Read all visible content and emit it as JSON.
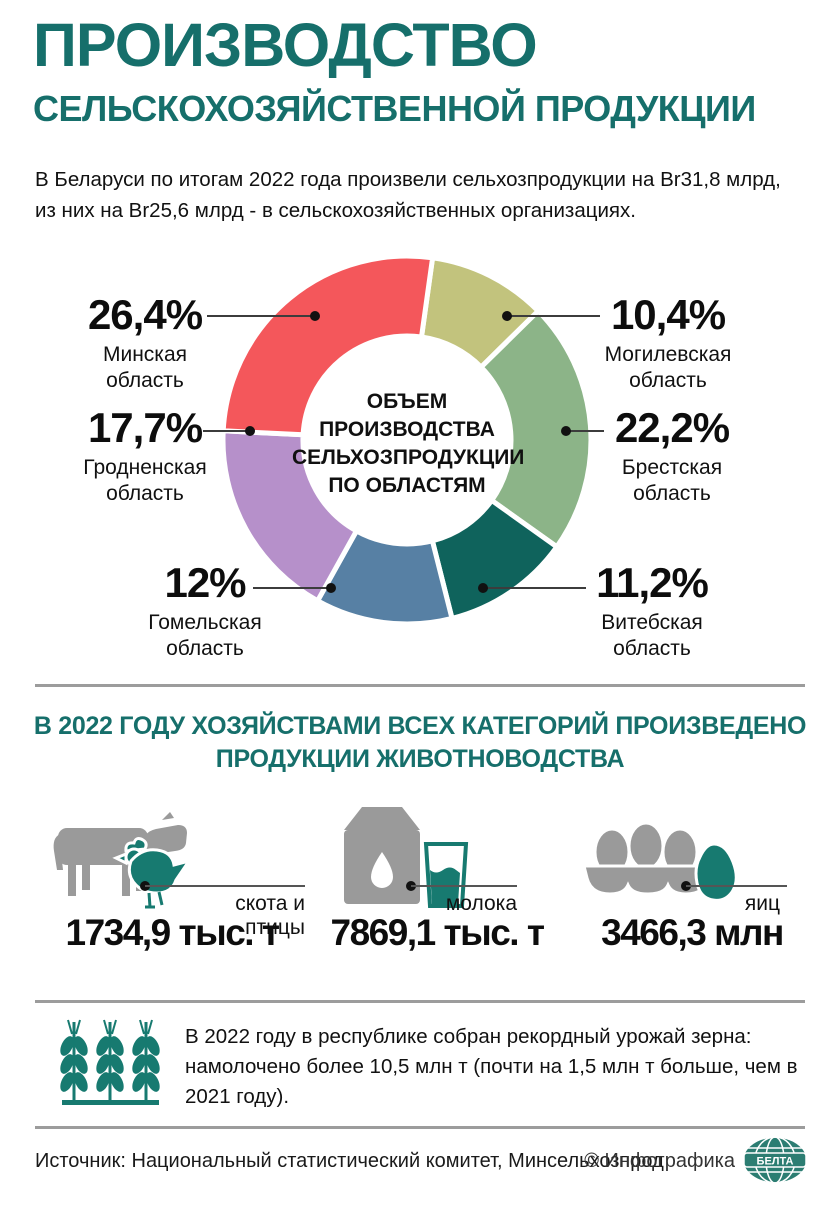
{
  "title": {
    "line1": "ПРОИЗВОДСТВО",
    "line2": "СЕЛЬСКОХОЗЯЙСТВЕННОЙ ПРОДУКЦИИ"
  },
  "intro": "В Беларуси по итогам 2022 года произвели сельхозпродукции на Br31,8 млрд, из них на Br25,6 млрд - в сельскохозяйственных организациях.",
  "chart_data": {
    "type": "pie",
    "subtype": "donut",
    "title": "ОБЪЕМ ПРОИЗВОДСТВА СЕЛЬХОЗПРОДУКЦИИ ПО ОБЛАСТЯМ",
    "center_label_lines": [
      "ОБЪЕМ",
      "ПРОИЗВОДСТВА",
      "СЕЛЬХОЗПРОДУКЦИИ",
      "ПО ОБЛАСТЯМ"
    ],
    "units": "%",
    "start_angle_deg": 8,
    "legend_position": "callouts-around-donut",
    "segments": [
      {
        "label": "Могилевская область",
        "value": 10.4,
        "value_text": "10,4%",
        "color": "#c2c37d"
      },
      {
        "label": "Брестская область",
        "value": 22.2,
        "value_text": "22,2%",
        "color": "#8cb488"
      },
      {
        "label": "Витебская область",
        "value": 11.2,
        "value_text": "11,2%",
        "color": "#0f635c"
      },
      {
        "label": "Гомельская область",
        "value": 12.0,
        "value_text": "12%",
        "color": "#5780a4"
      },
      {
        "label": "Гродненская область",
        "value": 17.7,
        "value_text": "17,7%",
        "color": "#b690ca"
      },
      {
        "label": "Минская область",
        "value": 26.4,
        "value_text": "26,4%",
        "color": "#f4575b"
      }
    ]
  },
  "livestock": {
    "heading_line1": "В 2022 ГОДУ ХОЗЯЙСТВАМИ ВСЕХ КАТЕГОРИЙ ПРОИЗВЕДЕНО",
    "heading_line2": "ПРОДУКЦИИ ЖИВОТНОВОДСТВА",
    "items": [
      {
        "icon": "cow-and-chicken-icon",
        "label": "скота и птицы",
        "value": "1734,9 тыс. т"
      },
      {
        "icon": "milk-icon",
        "label": "молока",
        "value": "7869,1 тыс. т"
      },
      {
        "icon": "eggs-icon",
        "label": "яиц",
        "value": "3466,3 млн"
      }
    ]
  },
  "grain_note": "В 2022 году в республике собран рекордный урожай зерна: намолочено более 10,5 млн т (почти на 1,5 млн т больше, чем в 2021 году).",
  "footer": {
    "source": "Источник: Национальный статистический комитет, Минсельхозпрод",
    "credit": "© Инфографика",
    "logo": "БЕЛТА"
  },
  "colors": {
    "accent_teal": "#166f6b",
    "icon_teal": "#177a70",
    "icon_gray": "#9a9a9a",
    "divider_gray": "#9c9c9c"
  }
}
